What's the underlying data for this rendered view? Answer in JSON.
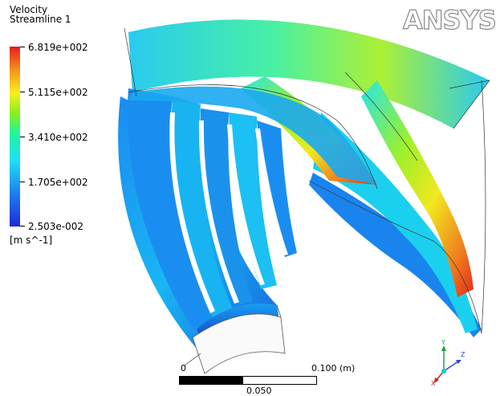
{
  "legend": {
    "title_line1": "Velocity",
    "title_line2": "Streamline 1",
    "ticks": [
      "6.819e+002",
      "5.115e+002",
      "3.410e+002",
      "1.705e+002",
      "2.503e-002"
    ],
    "units": "[m s^-1]",
    "colors": [
      "#1d2bd8",
      "#1fe0f7",
      "#86f11d",
      "#f7f01d",
      "#e71d1d"
    ]
  },
  "logo": {
    "text": "ANSYS"
  },
  "scalebar": {
    "left": "0",
    "mid": "0.050",
    "right": "0.100",
    "unit": "(m)"
  },
  "triad": {
    "x": "X",
    "y": "Y",
    "z": "Z"
  }
}
